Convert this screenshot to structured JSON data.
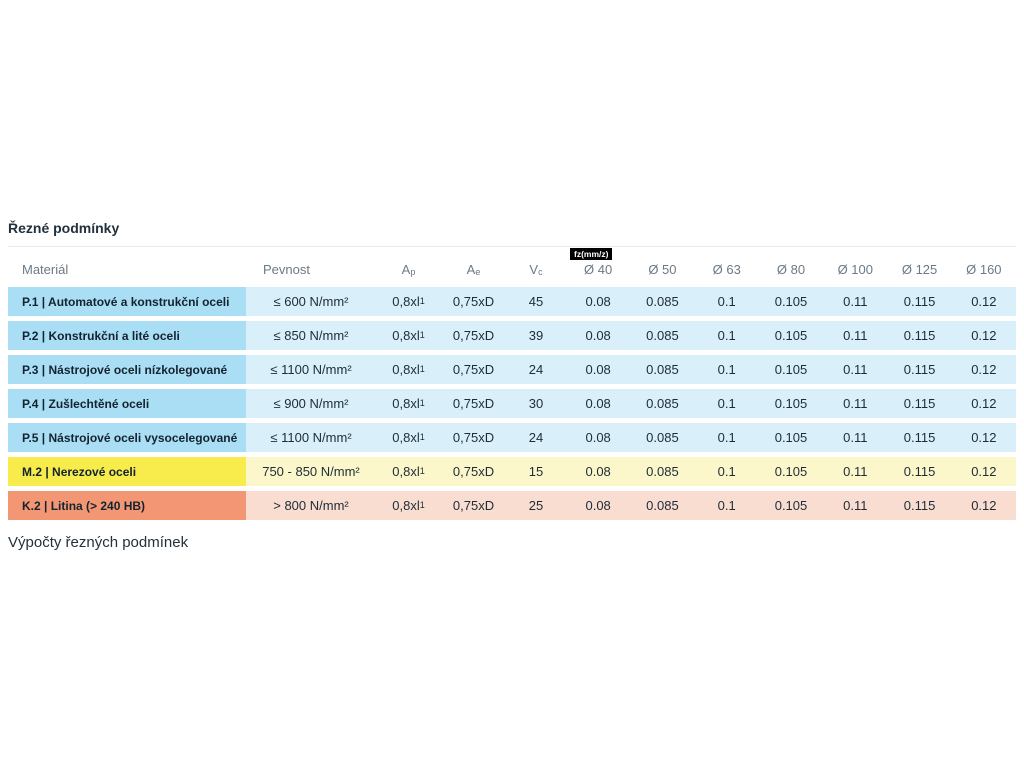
{
  "page": {
    "title": "Řezné podmínky",
    "footer": "Výpočty řezných podmínek"
  },
  "colors": {
    "blue_material": "#a9def4",
    "blue_values": "#d9effa",
    "yellow_material": "#f7ec4c",
    "yellow_values": "#fcf7cb",
    "orange_material": "#f29674",
    "orange_values": "#f9ddd0",
    "badge_bg": "#000000",
    "header_text": "#6b7a85"
  },
  "table": {
    "headers": {
      "material": "Materiál",
      "pevnost": "Pevnost",
      "ap_base": "A",
      "ap_sub": "p",
      "ae_base": "A",
      "ae_sub": "e",
      "vc_base": "V",
      "vc_sub": "c",
      "fz_badge": "fz(mm/z)",
      "diameters": [
        "Ø 40",
        "Ø 50",
        "Ø 63",
        "Ø 80",
        "Ø 100",
        "Ø 125",
        "Ø 160"
      ]
    },
    "rows": [
      {
        "material": "P.1 | Automatové a konstrukční oceli",
        "pevnost": "≤ 600 N/mm²",
        "ap_base": "0,8xl",
        "ap_sub": "1",
        "ae": "0,75xD",
        "vc": "45",
        "fz": [
          "0.08",
          "0.085",
          "0.1",
          "0.105",
          "0.11",
          "0.115",
          "0.12"
        ]
      },
      {
        "material": "P.2 | Konstrukční a lité oceli",
        "pevnost": "≤ 850 N/mm²",
        "ap_base": "0,8xl",
        "ap_sub": "1",
        "ae": "0,75xD",
        "vc": "39",
        "fz": [
          "0.08",
          "0.085",
          "0.1",
          "0.105",
          "0.11",
          "0.115",
          "0.12"
        ]
      },
      {
        "material": "P.3 | Nástrojové oceli nízkolegované",
        "pevnost": "≤ 1100 N/mm²",
        "ap_base": "0,8xl",
        "ap_sub": "1",
        "ae": "0,75xD",
        "vc": "24",
        "fz": [
          "0.08",
          "0.085",
          "0.1",
          "0.105",
          "0.11",
          "0.115",
          "0.12"
        ]
      },
      {
        "material": "P.4 | Zušlechtěné oceli",
        "pevnost": "≤ 900 N/mm²",
        "ap_base": "0,8xl",
        "ap_sub": "1",
        "ae": "0,75xD",
        "vc": "30",
        "fz": [
          "0.08",
          "0.085",
          "0.1",
          "0.105",
          "0.11",
          "0.115",
          "0.12"
        ]
      },
      {
        "material": "P.5 | Nástrojové oceli vysocelegované",
        "pevnost": "≤ 1100 N/mm²",
        "ap_base": "0,8xl",
        "ap_sub": "1",
        "ae": "0,75xD",
        "vc": "24",
        "fz": [
          "0.08",
          "0.085",
          "0.1",
          "0.105",
          "0.11",
          "0.115",
          "0.12"
        ]
      },
      {
        "material": "M.2 | Nerezové oceli",
        "pevnost": "750 - 850 N/mm²",
        "ap_base": "0,8xl",
        "ap_sub": "1",
        "ae": "0,75xD",
        "vc": "15",
        "fz": [
          "0.08",
          "0.085",
          "0.1",
          "0.105",
          "0.11",
          "0.115",
          "0.12"
        ]
      },
      {
        "material": "K.2 | Litina (> 240 HB)",
        "pevnost": "> 800 N/mm²",
        "ap_base": "0,8xl",
        "ap_sub": "1",
        "ae": "0,75xD",
        "vc": "25",
        "fz": [
          "0.08",
          "0.085",
          "0.1",
          "0.105",
          "0.11",
          "0.115",
          "0.12"
        ]
      }
    ]
  }
}
